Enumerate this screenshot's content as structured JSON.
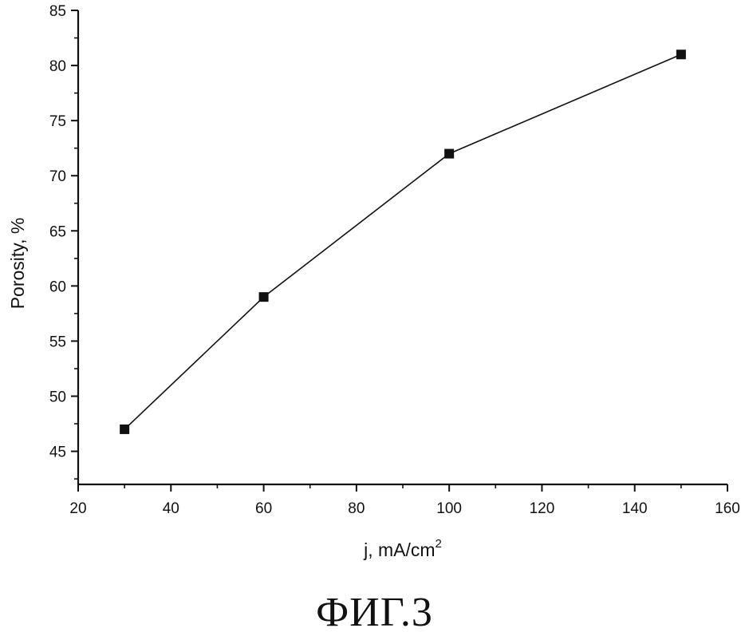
{
  "figure": {
    "caption": "ФИГ.3"
  },
  "colors": {
    "axis": "#111111",
    "line": "#111111",
    "marker": "#111111",
    "background": "#ffffff"
  },
  "chart_data": {
    "type": "line",
    "title": "",
    "xlabel_main": "j, mA/cm",
    "xlabel_sup": "2",
    "ylabel": "Porosity, %",
    "xlim": [
      20,
      160
    ],
    "ylim": [
      42,
      85
    ],
    "x_ticks": [
      20,
      40,
      60,
      80,
      100,
      120,
      140,
      160
    ],
    "y_ticks": [
      45,
      50,
      55,
      60,
      65,
      70,
      75,
      80,
      85
    ],
    "grid": false,
    "legend": "none",
    "marker": "square",
    "series": [
      {
        "x": [
          30,
          60,
          100,
          150
        ],
        "y": [
          47,
          59,
          72,
          81
        ]
      }
    ]
  }
}
